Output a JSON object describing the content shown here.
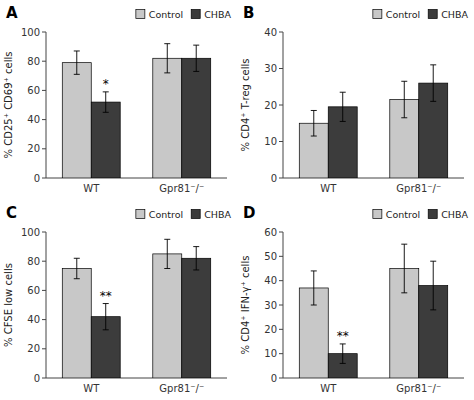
{
  "chart_data": [
    {
      "type": "bar",
      "title": "A",
      "ylabel": "% CD25⁺ CD69⁺ cells",
      "categories": [
        "WT",
        "Gpr81⁻/⁻"
      ],
      "series": [
        {
          "name": "Control",
          "color": "#c8c8c8",
          "values": [
            79,
            82
          ],
          "errors": [
            8,
            10
          ]
        },
        {
          "name": "CHBA",
          "color": "#3c3c3c",
          "values": [
            52,
            82
          ],
          "errors": [
            7,
            9
          ],
          "annotations": [
            "*",
            null
          ]
        }
      ],
      "ylim": [
        0,
        100
      ],
      "yticks": [
        0,
        20,
        40,
        60,
        80,
        100
      ],
      "grid": false,
      "legend": "upper right"
    },
    {
      "type": "bar",
      "title": "B",
      "ylabel": "% CD4⁺ T-reg cells",
      "categories": [
        "WT",
        "Gpr81⁻/⁻"
      ],
      "series": [
        {
          "name": "Control",
          "color": "#c8c8c8",
          "values": [
            15,
            21.5
          ],
          "errors": [
            3.5,
            5
          ]
        },
        {
          "name": "CHBA",
          "color": "#3c3c3c",
          "values": [
            19.5,
            26
          ],
          "errors": [
            4,
            5
          ]
        }
      ],
      "ylim": [
        0,
        40
      ],
      "yticks": [
        0,
        10,
        20,
        30,
        40
      ],
      "grid": false,
      "legend": "upper right"
    },
    {
      "type": "bar",
      "title": "C",
      "ylabel": "% CFSE low cells",
      "categories": [
        "WT",
        "Gpr81⁻/⁻"
      ],
      "series": [
        {
          "name": "Control",
          "color": "#c8c8c8",
          "values": [
            75,
            85
          ],
          "errors": [
            7,
            10
          ]
        },
        {
          "name": "CHBA",
          "color": "#3c3c3c",
          "values": [
            42,
            82
          ],
          "errors": [
            9,
            8
          ],
          "annotations": [
            "**",
            null
          ]
        }
      ],
      "ylim": [
        0,
        100
      ],
      "yticks": [
        0,
        20,
        40,
        60,
        80,
        100
      ],
      "grid": false,
      "legend": "upper right"
    },
    {
      "type": "bar",
      "title": "D",
      "ylabel": "% CD4⁺ IFN-γ⁺ cells",
      "categories": [
        "WT",
        "Gpr81⁻/⁻"
      ],
      "series": [
        {
          "name": "Control",
          "color": "#c8c8c8",
          "values": [
            37,
            45
          ],
          "errors": [
            7,
            10
          ]
        },
        {
          "name": "CHBA",
          "color": "#3c3c3c",
          "values": [
            10,
            38
          ],
          "errors": [
            4,
            10
          ],
          "annotations": [
            "**",
            null
          ]
        }
      ],
      "ylim": [
        0,
        60
      ],
      "yticks": [
        0,
        10,
        20,
        30,
        40,
        50,
        60
      ],
      "grid": false,
      "legend": "upper right"
    }
  ]
}
